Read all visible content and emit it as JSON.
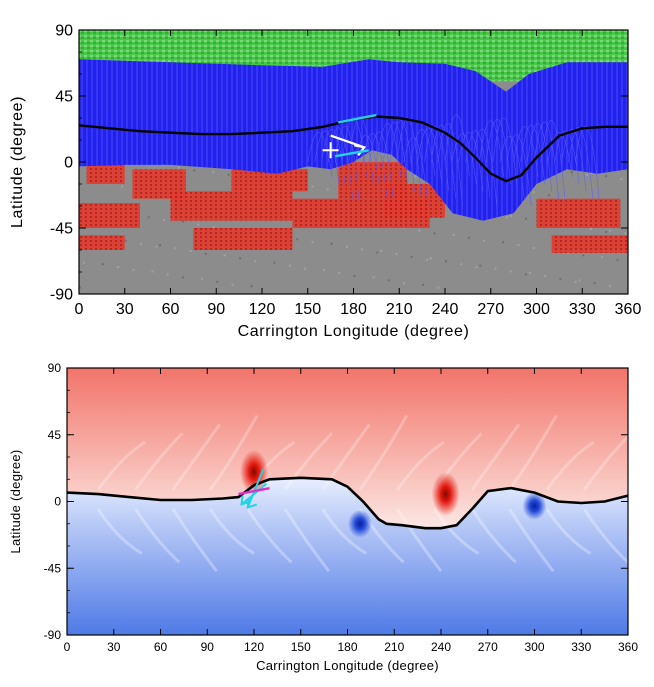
{
  "chart_data": [
    {
      "type": "scatter",
      "xlabel": "Carrington Longitude (degree)",
      "ylabel": "Latitude (degree)",
      "xlim": [
        0,
        360
      ],
      "ylim": [
        -90,
        90
      ],
      "xticks": [
        "0",
        "30",
        "60",
        "90",
        "120",
        "150",
        "180",
        "210",
        "240",
        "270",
        "300",
        "330",
        "360"
      ],
      "yticks": [
        "90",
        "45",
        "0",
        "-45",
        "-90"
      ],
      "colors": {
        "open_field_north": "#3bbf3b",
        "closed_field": "#1e1ee8",
        "open_field_south": "#e03030",
        "magnetogram_background": "#8c8c8c",
        "neutral_line": "#000000",
        "cyan_arrow": "#22d3e6",
        "white_arrow": "#ffffff"
      },
      "neutral_line": {
        "x": [
          0,
          20,
          40,
          60,
          80,
          100,
          120,
          140,
          160,
          180,
          195,
          210,
          225,
          240,
          250,
          260,
          270,
          280,
          290,
          300,
          315,
          330,
          345,
          360
        ],
        "y": [
          25,
          23,
          21,
          20,
          19,
          19,
          20,
          21,
          24,
          29,
          31,
          30,
          27,
          20,
          13,
          3,
          -8,
          -13,
          -9,
          3,
          18,
          23,
          24,
          24
        ]
      },
      "markers": {
        "plus": {
          "x": 165,
          "y": 8
        },
        "white_arrow": {
          "x": [
            165,
            187
          ],
          "y": [
            18,
            10
          ]
        },
        "cyan_line_upper": {
          "x": [
            170,
            195
          ],
          "y": [
            27,
            32
          ]
        },
        "cyan_line_lower": {
          "x": [
            168,
            190
          ],
          "y": [
            4,
            8
          ]
        }
      }
    },
    {
      "type": "heatmap",
      "xlabel": "Carrington Longitude (degree)",
      "ylabel": "Latitude (degree)",
      "xlim": [
        0,
        360
      ],
      "ylim": [
        -90,
        90
      ],
      "xticks": [
        "0",
        "30",
        "60",
        "90",
        "120",
        "150",
        "180",
        "210",
        "240",
        "270",
        "300",
        "330",
        "360"
      ],
      "yticks": [
        "90",
        "45",
        "0",
        "-45",
        "-90"
      ],
      "colors": {
        "positive": "#ee5c52",
        "negative": "#3f6fe0",
        "neutral_line": "#000000",
        "cyan_arrow": "#22d3e6",
        "magenta_line": "#e030c8"
      },
      "neutral_line": {
        "x": [
          0,
          20,
          40,
          60,
          80,
          100,
          110,
          120,
          130,
          150,
          170,
          180,
          190,
          200,
          205,
          215,
          230,
          240,
          250,
          260,
          270,
          285,
          300,
          315,
          330,
          345,
          360
        ],
        "y": [
          6,
          5,
          3,
          1,
          1,
          2,
          3,
          11,
          15,
          16,
          15,
          10,
          0,
          -12,
          -15,
          -16,
          -18,
          -18,
          -16,
          -5,
          7,
          9,
          6,
          0,
          -1,
          0,
          4
        ]
      },
      "hotspots": [
        {
          "x": 120,
          "y": 20,
          "sign": "positive"
        },
        {
          "x": 243,
          "y": 5,
          "sign": "positive"
        },
        {
          "x": 188,
          "y": -15,
          "sign": "negative"
        },
        {
          "x": 300,
          "y": -3,
          "sign": "negative"
        }
      ],
      "markers": {
        "cyan_arrow_a": {
          "x": [
            126,
            116
          ],
          "y": [
            22,
            -4
          ]
        },
        "cyan_arrow_b": {
          "x": [
            128,
            112
          ],
          "y": [
            12,
            -2
          ]
        },
        "magenta_line": {
          "x": [
            110,
            130
          ],
          "y": [
            5,
            9
          ]
        }
      }
    }
  ]
}
